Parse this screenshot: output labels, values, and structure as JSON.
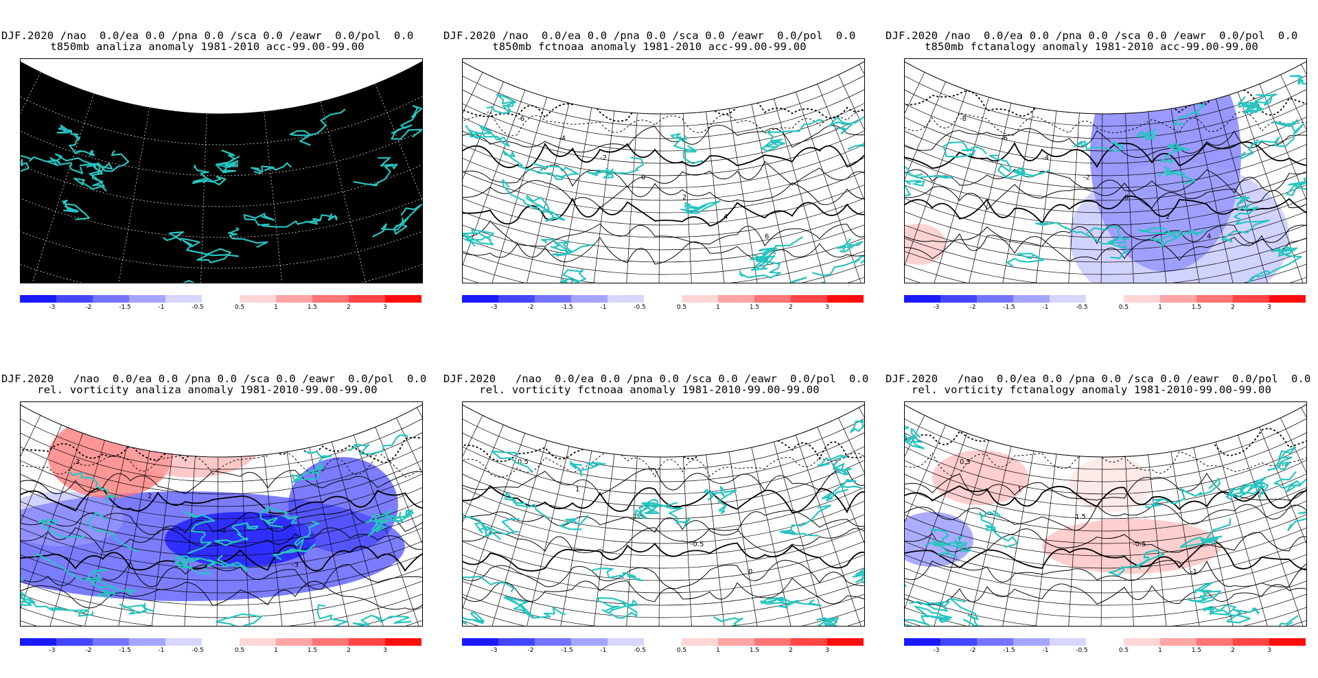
{
  "palette": {
    "neg": [
      "#1a1aff",
      "#4545ff",
      "#7474ff",
      "#a5a5ff",
      "#d6d6ff"
    ],
    "pos": [
      "#ffd6d6",
      "#ffa5a5",
      "#ff7474",
      "#ff4545",
      "#ff0d0d"
    ],
    "coast": "#27c4c0",
    "contour": "#000000",
    "dark_background": "#000000"
  },
  "colorbar": {
    "neg_labels": [
      "-3",
      "-2",
      "-1.5",
      "-1",
      "-0.5"
    ],
    "pos_labels": [
      "0.5",
      "1",
      "1.5",
      "2",
      "3"
    ]
  },
  "panels": [
    {
      "id": "t850-analiza",
      "title1": "DJF.2020 /nao  0.0/ea 0.0 /pna 0.0 /sca 0.0 /eawr  0.0/pol  0.0",
      "title2": "t850mb analiza anomaly 1981-2010 acc-99.00-99.00",
      "background": "dark",
      "contour_labels": []
    },
    {
      "id": "t850-fctnoaa",
      "title1": "DJF.2020 /nao  0.0/ea 0.0 /pna 0.0 /sca 0.0 /eawr  0.0/pol  0.0",
      "title2": "t850mb fctnoaa anomaly 1981-2010 acc-99.00-99.00",
      "background": "light",
      "contour_labels": [
        "-6",
        "-4",
        "-2",
        "0",
        "2",
        "4",
        "6"
      ]
    },
    {
      "id": "t850-fctanalogy",
      "title1": "DJF.2020 /nao  0.0/ea 0.0 /pna 0.0 /sca 0.0 /eawr  0.0/pol  0.0",
      "title2": "t850mb fctanalogy anomaly 1981-2010 acc-99.00-99.00",
      "background": "light",
      "contour_labels": [
        "-8",
        "-6",
        "-4",
        "-2",
        "0",
        "2",
        "4"
      ]
    },
    {
      "id": "vort-analiza",
      "title1": "DJF.2020   /nao  0.0/ea 0.0 /pna 0.0 /sca 0.0 /eawr  0.0/pol  0.0",
      "title2": "rel. vorticity analiza anomaly 1981-2010-99.00-99.00",
      "background": "light",
      "contour_labels": [
        "3",
        "2",
        "-2",
        "-3"
      ]
    },
    {
      "id": "vort-fctnoaa",
      "title1": "DJF.2020   /nao  0.0/ea 0.0 /pna 0.0 /sca 0.0 /eawr  0.0/pol  0.0",
      "title2": "rel. vorticity fctnoaa anomaly 1981-2010-99.00-99.00",
      "background": "light",
      "contour_labels": [
        "0.5",
        "1",
        "1.5",
        "-0.5",
        "0"
      ]
    },
    {
      "id": "vort-fctanalogy",
      "title1": "DJF.2020   /nao  0.0/ea 0.0 /pna 0.0 /sca 0.0 /eawr  0.0/pol  0.0",
      "title2": "rel. vorticity fctanalogy anomaly 1981-2010-99.00-99.00",
      "background": "light",
      "contour_labels": [
        "0.5",
        "1",
        "1.5",
        "-0.5",
        "-1"
      ]
    }
  ]
}
